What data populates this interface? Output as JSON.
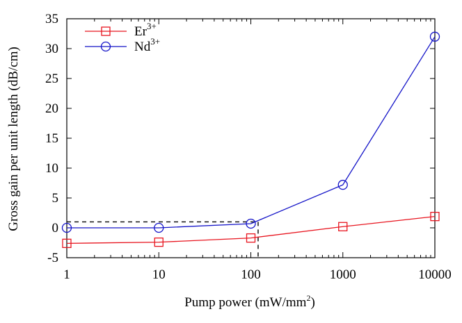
{
  "chart_data": {
    "type": "line",
    "xlabel": "Pump power (mW/mm",
    "xlabel_sup": "2",
    "xlabel_tail": ")",
    "ylabel": "Gross gain per unit length (dB/cm)",
    "x_scale": "log",
    "xlim": [
      1,
      10000
    ],
    "ylim": [
      -5,
      35
    ],
    "x_ticks": [
      1,
      10,
      100,
      1000,
      10000
    ],
    "x_tick_labels": [
      "1",
      "10",
      "100",
      "1000",
      "10000"
    ],
    "y_ticks": [
      -5,
      0,
      5,
      10,
      15,
      20,
      25,
      30,
      35
    ],
    "y_tick_labels": [
      "-5",
      "0",
      "5",
      "10",
      "15",
      "20",
      "25",
      "30",
      "35"
    ],
    "grid": false,
    "legend_position": "top-left",
    "series": [
      {
        "name": "Er",
        "name_sup": "3+",
        "color": "#e8141e",
        "marker": "square",
        "x": [
          1,
          10,
          100,
          1000,
          10000
        ],
        "y": [
          -2.6,
          -2.4,
          -1.7,
          0.2,
          1.9
        ]
      },
      {
        "name": "Nd",
        "name_sup": "3+",
        "color": "#1414c8",
        "marker": "circle",
        "x": [
          1,
          10,
          100,
          1000,
          10000
        ],
        "y": [
          0.0,
          0.0,
          0.7,
          7.2,
          32.0
        ]
      }
    ],
    "annotations": [
      {
        "type": "dashed-horizontal",
        "y": 1,
        "x_from": 1,
        "x_to": 120,
        "color": "#000000"
      },
      {
        "type": "dashed-vertical",
        "x": 120,
        "y_from": -5,
        "y_to": 1,
        "color": "#000000"
      }
    ]
  }
}
